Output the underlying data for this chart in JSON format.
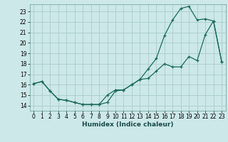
{
  "title": "",
  "xlabel": "Humidex (Indice chaleur)",
  "background_color": "#cce8e8",
  "grid_color": "#aacccc",
  "line_color": "#1a6b5a",
  "xlim": [
    -0.5,
    23.5
  ],
  "ylim": [
    13.5,
    23.7
  ],
  "xticks": [
    0,
    1,
    2,
    3,
    4,
    5,
    6,
    7,
    8,
    9,
    10,
    11,
    12,
    13,
    14,
    15,
    16,
    17,
    18,
    19,
    20,
    21,
    22,
    23
  ],
  "yticks": [
    14,
    15,
    16,
    17,
    18,
    19,
    20,
    21,
    22,
    23
  ],
  "series1_x": [
    0,
    1,
    2,
    3,
    4,
    5,
    6,
    7,
    8,
    9,
    10,
    11,
    12,
    13,
    14,
    15,
    16,
    17,
    18,
    19,
    20,
    21,
    22,
    23
  ],
  "series1_y": [
    16.1,
    16.3,
    15.4,
    14.6,
    14.5,
    14.3,
    14.1,
    14.1,
    14.1,
    14.3,
    15.4,
    15.5,
    16.0,
    16.5,
    17.5,
    18.5,
    20.7,
    22.2,
    23.3,
    23.5,
    22.2,
    22.3,
    22.1,
    18.2
  ],
  "series2_x": [
    0,
    1,
    2,
    3,
    4,
    5,
    6,
    7,
    8,
    9,
    10,
    11,
    12,
    13,
    14,
    15,
    16,
    17,
    18,
    19,
    20,
    21,
    22,
    23
  ],
  "series2_y": [
    16.1,
    16.3,
    15.4,
    14.6,
    14.5,
    14.3,
    14.1,
    14.1,
    14.1,
    15.0,
    15.5,
    15.5,
    16.0,
    16.5,
    16.6,
    17.3,
    18.0,
    17.7,
    17.7,
    18.7,
    18.3,
    20.8,
    22.1,
    18.2
  ]
}
